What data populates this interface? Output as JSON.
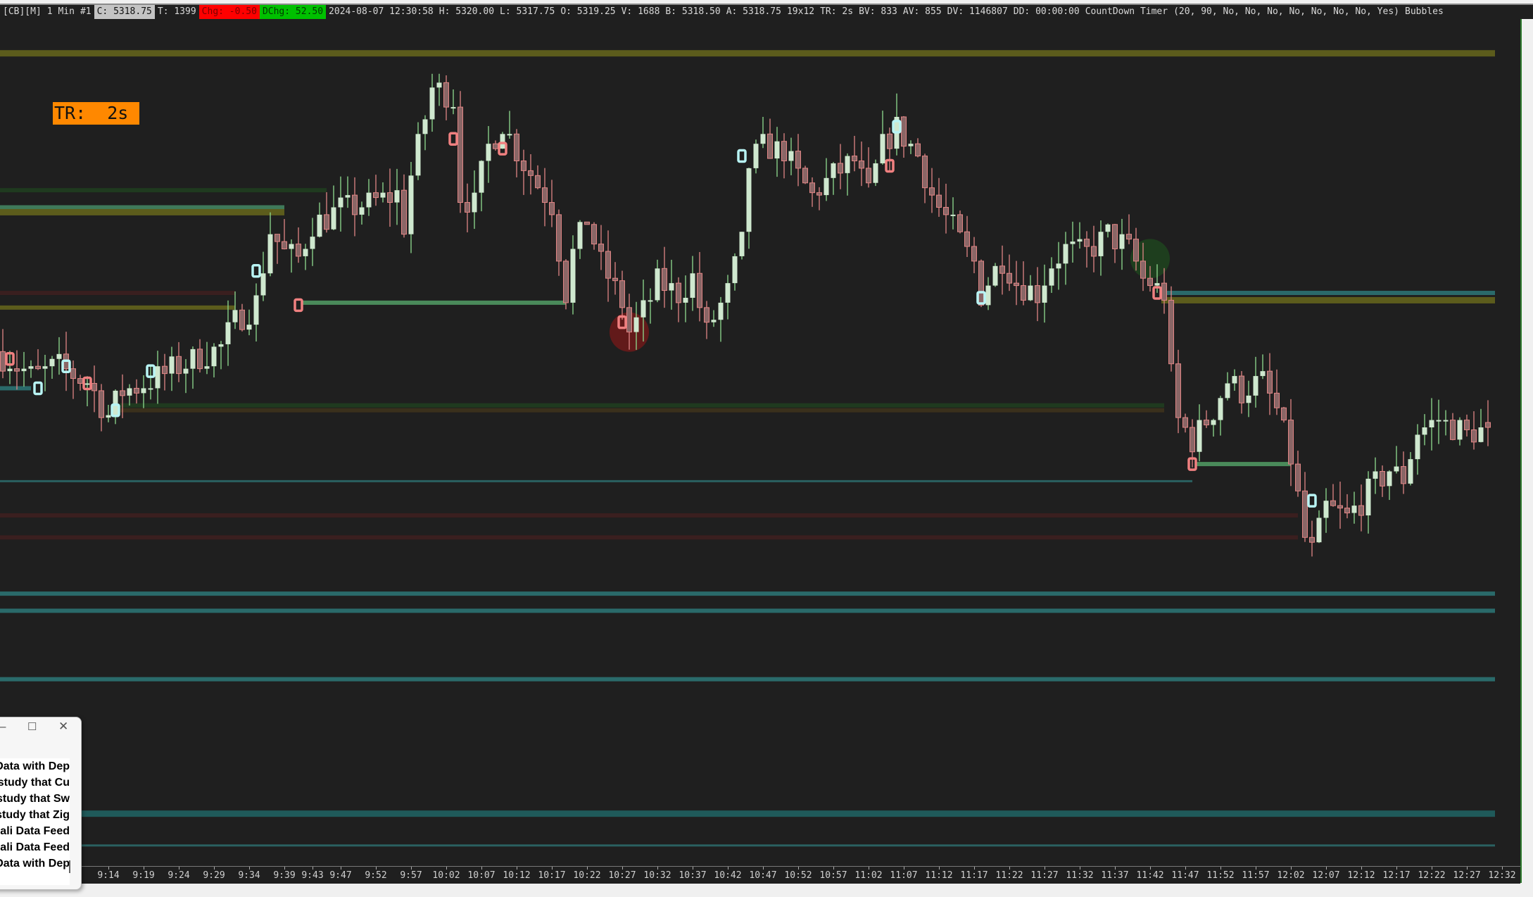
{
  "header": {
    "symbol": "[CB][M]",
    "interval": "1 Min",
    "chart_num": "#1",
    "close": "C: 5318.75",
    "trades": "T: 1399",
    "chg": "Chg: -0.50",
    "dchg": "DChg: 52.50",
    "datetime": "2024-08-07 12:30:58",
    "high": "H: 5320.00",
    "low": "L: 5317.75",
    "open": "O: 5319.25",
    "volume": "V: 1688",
    "bid": "B: 5318.50",
    "ask": "A: 5318.75",
    "bar_size": "19x12",
    "tr": "TR: 2s",
    "bv": "BV: 833",
    "av": "AV: 855",
    "dv": "DV: 1146807",
    "dd": "DD: 00:00:00",
    "study": "CountDown Timer",
    "study_params": "(20, 90, No, No, No, No, No, No, No, Yes)",
    "bubbles": "Bubbles",
    "colors": {
      "close_bg": "#c4c4c4",
      "chg_bg": "#ff0000",
      "dchg_bg": "#00c000"
    }
  },
  "tr_label": "TR:  2s",
  "tr_label_color": "#ff8800",
  "time_axis": [
    "9:14",
    "9:19",
    "9:24",
    "9:29",
    "9:34",
    "9:39",
    "9:43",
    "9:47",
    "9:52",
    "9:57",
    "10:02",
    "10:07",
    "10:12",
    "10:17",
    "10:22",
    "10:27",
    "10:32",
    "10:37",
    "10:42",
    "10:47",
    "10:52",
    "10:57",
    "11:02",
    "11:07",
    "11:12",
    "11:17",
    "11:22",
    "11:27",
    "11:32",
    "11:37",
    "11:42",
    "11:47",
    "11:52",
    "11:57",
    "12:02",
    "12:07",
    "12:12",
    "12:17",
    "12:22",
    "12:27",
    "12:32"
  ],
  "popup": {
    "minimize_icon": "minimize-icon",
    "maximize_icon": "maximize-icon",
    "close_icon": "close-icon",
    "items": [
      "Data with Dep",
      "study that Cu",
      "study that Sw",
      "study that Zig",
      "ali Data Feed",
      "ali Data Feed",
      "Data with Dep"
    ]
  },
  "chart_data": {
    "type": "candlestick",
    "bar_interval": "1 Min",
    "last": {
      "open": 5319.25,
      "high": 5320.0,
      "low": 5317.75,
      "close": 5318.75
    },
    "colors": {
      "up_body": "#cfe8cf",
      "up_wick": "#8fdc8f",
      "down_body": "#8a6666",
      "down_outline": "#e08585"
    },
    "price_path": [
      [
        "8:59",
        5326.0
      ],
      [
        "9:03",
        5324.0
      ],
      [
        "9:07",
        5325.0
      ],
      [
        "9:11",
        5323.5
      ],
      [
        "9:14",
        5320.0
      ],
      [
        "9:16",
        5322.5
      ],
      [
        "9:20",
        5323.5
      ],
      [
        "9:24",
        5325.0
      ],
      [
        "9:30",
        5327.0
      ],
      [
        "9:32",
        5329.5
      ],
      [
        "9:35",
        5331.5
      ],
      [
        "9:37",
        5339.0
      ],
      [
        "9:39",
        5336.5
      ],
      [
        "9:41",
        5336.0
      ],
      [
        "9:43",
        5339.5
      ],
      [
        "9:47",
        5341.0
      ],
      [
        "9:50",
        5341.5
      ],
      [
        "9:55",
        5342.5
      ],
      [
        "9:56",
        5339.5
      ],
      [
        "9:57",
        5344.5
      ],
      [
        "10:00",
        5353.5
      ],
      [
        "10:03",
        5352.5
      ],
      [
        "10:04",
        5342.5
      ],
      [
        "10:06",
        5341.5
      ],
      [
        "10:08",
        5347.5
      ],
      [
        "10:10",
        5350.0
      ],
      [
        "10:12",
        5347.0
      ],
      [
        "10:15",
        5343.5
      ],
      [
        "10:17",
        5341.5
      ],
      [
        "10:19",
        5332.5
      ],
      [
        "10:20",
        5336.5
      ],
      [
        "10:22",
        5340.0
      ],
      [
        "10:24",
        5335.5
      ],
      [
        "10:27",
        5331.5
      ],
      [
        "10:28",
        5328.5
      ],
      [
        "10:30",
        5330.5
      ],
      [
        "10:32",
        5333.5
      ],
      [
        "10:35",
        5332.5
      ],
      [
        "10:37",
        5334.0
      ],
      [
        "10:39",
        5328.5
      ],
      [
        "10:42",
        5332.5
      ],
      [
        "10:44",
        5337.5
      ],
      [
        "10:45",
        5345.5
      ],
      [
        "10:47",
        5347.5
      ],
      [
        "10:50",
        5347.0
      ],
      [
        "10:52",
        5344.5
      ],
      [
        "10:54",
        5342.5
      ],
      [
        "10:57",
        5344.5
      ],
      [
        "11:00",
        5346.0
      ],
      [
        "11:02",
        5342.5
      ],
      [
        "11:04",
        5347.5
      ],
      [
        "11:06",
        5349.5
      ],
      [
        "11:09",
        5346.5
      ],
      [
        "11:11",
        5342.5
      ],
      [
        "11:14",
        5339.0
      ],
      [
        "11:17",
        5335.5
      ],
      [
        "11:18",
        5332.5
      ],
      [
        "11:21",
        5336.0
      ],
      [
        "11:23",
        5333.5
      ],
      [
        "11:26",
        5332.5
      ],
      [
        "11:28",
        5335.5
      ],
      [
        "11:30",
        5337.0
      ],
      [
        "11:33",
        5336.5
      ],
      [
        "11:36",
        5338.5
      ],
      [
        "11:39",
        5337.0
      ],
      [
        "11:41",
        5334.0
      ],
      [
        "11:44",
        5332.5
      ],
      [
        "11:45",
        5324.0
      ],
      [
        "11:46",
        5319.5
      ],
      [
        "11:48",
        5317.5
      ],
      [
        "11:51",
        5320.5
      ],
      [
        "11:53",
        5323.5
      ],
      [
        "11:55",
        5322.5
      ],
      [
        "11:58",
        5323.5
      ],
      [
        "12:00",
        5320.5
      ],
      [
        "12:02",
        5315.5
      ],
      [
        "12:04",
        5307.5
      ],
      [
        "12:05",
        5306.0
      ],
      [
        "12:07",
        5310.5
      ],
      [
        "12:10",
        5309.5
      ],
      [
        "12:13",
        5312.0
      ],
      [
        "12:16",
        5314.5
      ],
      [
        "12:18",
        5313.5
      ],
      [
        "12:20",
        5318.5
      ],
      [
        "12:23",
        5319.5
      ],
      [
        "12:27",
        5318.0
      ],
      [
        "12:30",
        5318.75
      ]
    ],
    "levels": [
      {
        "price": 5357.0,
        "from": "8:59",
        "to": "12:31",
        "color": "#5c5c1c",
        "weight": "heavy"
      },
      {
        "price": 5343.0,
        "from": "8:59",
        "to": "9:45",
        "color": "#1f3a1f",
        "weight": "medium"
      },
      {
        "price": 5341.25,
        "from": "8:59",
        "to": "9:39",
        "color": "#3f7a5a",
        "weight": "medium"
      },
      {
        "price": 5340.75,
        "from": "8:59",
        "to": "9:39",
        "color": "#5c5c1c",
        "weight": "heavy"
      },
      {
        "price": 5332.5,
        "from": "8:59",
        "to": "9:32",
        "color": "#3a1f1f",
        "weight": "medium"
      },
      {
        "price": 5331.0,
        "from": "8:59",
        "to": "9:32",
        "color": "#5c5c1c",
        "weight": "medium"
      },
      {
        "price": 5331.5,
        "from": "9:42",
        "to": "10:19",
        "color": "#4a8a5a",
        "weight": "medium"
      },
      {
        "price": 5332.5,
        "from": "11:44",
        "to": "12:31",
        "color": "#2a6a6a",
        "weight": "medium"
      },
      {
        "price": 5331.75,
        "from": "11:44",
        "to": "12:31",
        "color": "#5c5c1c",
        "weight": "heavy"
      },
      {
        "price": 5322.75,
        "from": "8:59",
        "to": "9:03",
        "color": "#2a6a6a",
        "weight": "medium"
      },
      {
        "price": 5321.0,
        "from": "9:16",
        "to": "11:44",
        "color": "#1f3a1f",
        "weight": "medium"
      },
      {
        "price": 5320.5,
        "from": "9:16",
        "to": "11:44",
        "color": "#3a301c",
        "weight": "medium"
      },
      {
        "price": 5315.0,
        "from": "11:49",
        "to": "12:02",
        "color": "#4a8a5a",
        "weight": "medium"
      },
      {
        "price": 5313.25,
        "from": "8:59",
        "to": "11:48",
        "color": "#2a6060",
        "weight": "thin"
      },
      {
        "price": 5309.75,
        "from": "8:59",
        "to": "12:03",
        "color": "#3a1f1f",
        "weight": "medium"
      },
      {
        "price": 5307.5,
        "from": "8:59",
        "to": "12:03",
        "color": "#3a1f1f",
        "weight": "medium"
      },
      {
        "price": 5301.75,
        "from": "8:59",
        "to": "12:31",
        "color": "#2a6a6a",
        "weight": "medium"
      },
      {
        "price": 5300.0,
        "from": "8:59",
        "to": "12:31",
        "color": "#2a6a6a",
        "weight": "medium"
      },
      {
        "price": 5293.0,
        "from": "8:59",
        "to": "12:31",
        "color": "#2a6a6a",
        "weight": "medium"
      },
      {
        "price": 5279.25,
        "from": "8:59",
        "to": "12:31",
        "color": "#1f5a5a",
        "weight": "heavy"
      },
      {
        "price": 5276.0,
        "from": "8:59",
        "to": "12:31",
        "color": "#2a6060",
        "weight": "thin"
      }
    ],
    "markers": [
      {
        "time": "9:00",
        "price": 5325.75,
        "kind": "high-marker",
        "color": "#f08080"
      },
      {
        "time": "9:11",
        "price": 5323.25,
        "kind": "high-marker",
        "color": "#f08080"
      },
      {
        "time": "9:41",
        "price": 5331.25,
        "kind": "high-marker",
        "color": "#f08080"
      },
      {
        "time": "10:03",
        "price": 5348.25,
        "kind": "high-marker",
        "color": "#f08080"
      },
      {
        "time": "10:10",
        "price": 5347.25,
        "kind": "high-marker",
        "color": "#f08080"
      },
      {
        "time": "10:27",
        "price": 5329.5,
        "kind": "high-marker",
        "color": "#f08080"
      },
      {
        "time": "11:05",
        "price": 5345.5,
        "kind": "high-marker",
        "color": "#f08080"
      },
      {
        "time": "11:43",
        "price": 5332.5,
        "kind": "high-marker",
        "color": "#f08080"
      },
      {
        "time": "11:48",
        "price": 5315.0,
        "kind": "high-marker",
        "color": "#f08080"
      },
      {
        "time": "9:04",
        "price": 5322.75,
        "kind": "low-marker",
        "color": "#b8f4f4"
      },
      {
        "time": "9:08",
        "price": 5325.0,
        "kind": "low-marker",
        "color": "#b8f4f4"
      },
      {
        "time": "9:15",
        "price": 5320.5,
        "kind": "low-marker",
        "color": "#b8f4f4"
      },
      {
        "time": "9:20",
        "price": 5324.5,
        "kind": "low-marker",
        "color": "#b8f4f4"
      },
      {
        "time": "9:35",
        "price": 5334.75,
        "kind": "low-marker",
        "color": "#b8f4f4"
      },
      {
        "time": "10:44",
        "price": 5346.5,
        "kind": "low-marker",
        "color": "#b8f4f4"
      },
      {
        "time": "11:06",
        "price": 5349.5,
        "kind": "low-marker",
        "color": "#b8f4f4"
      },
      {
        "time": "11:18",
        "price": 5332.0,
        "kind": "low-marker",
        "color": "#b8f4f4"
      },
      {
        "time": "12:05",
        "price": 5311.25,
        "kind": "low-marker",
        "color": "#b8f4f4"
      }
    ],
    "bubbles": [
      {
        "time": "10:28",
        "price": 5328.5,
        "color": "#7a1a1a"
      },
      {
        "time": "11:42",
        "price": 5336.0,
        "color": "#1f4a1f"
      }
    ]
  }
}
